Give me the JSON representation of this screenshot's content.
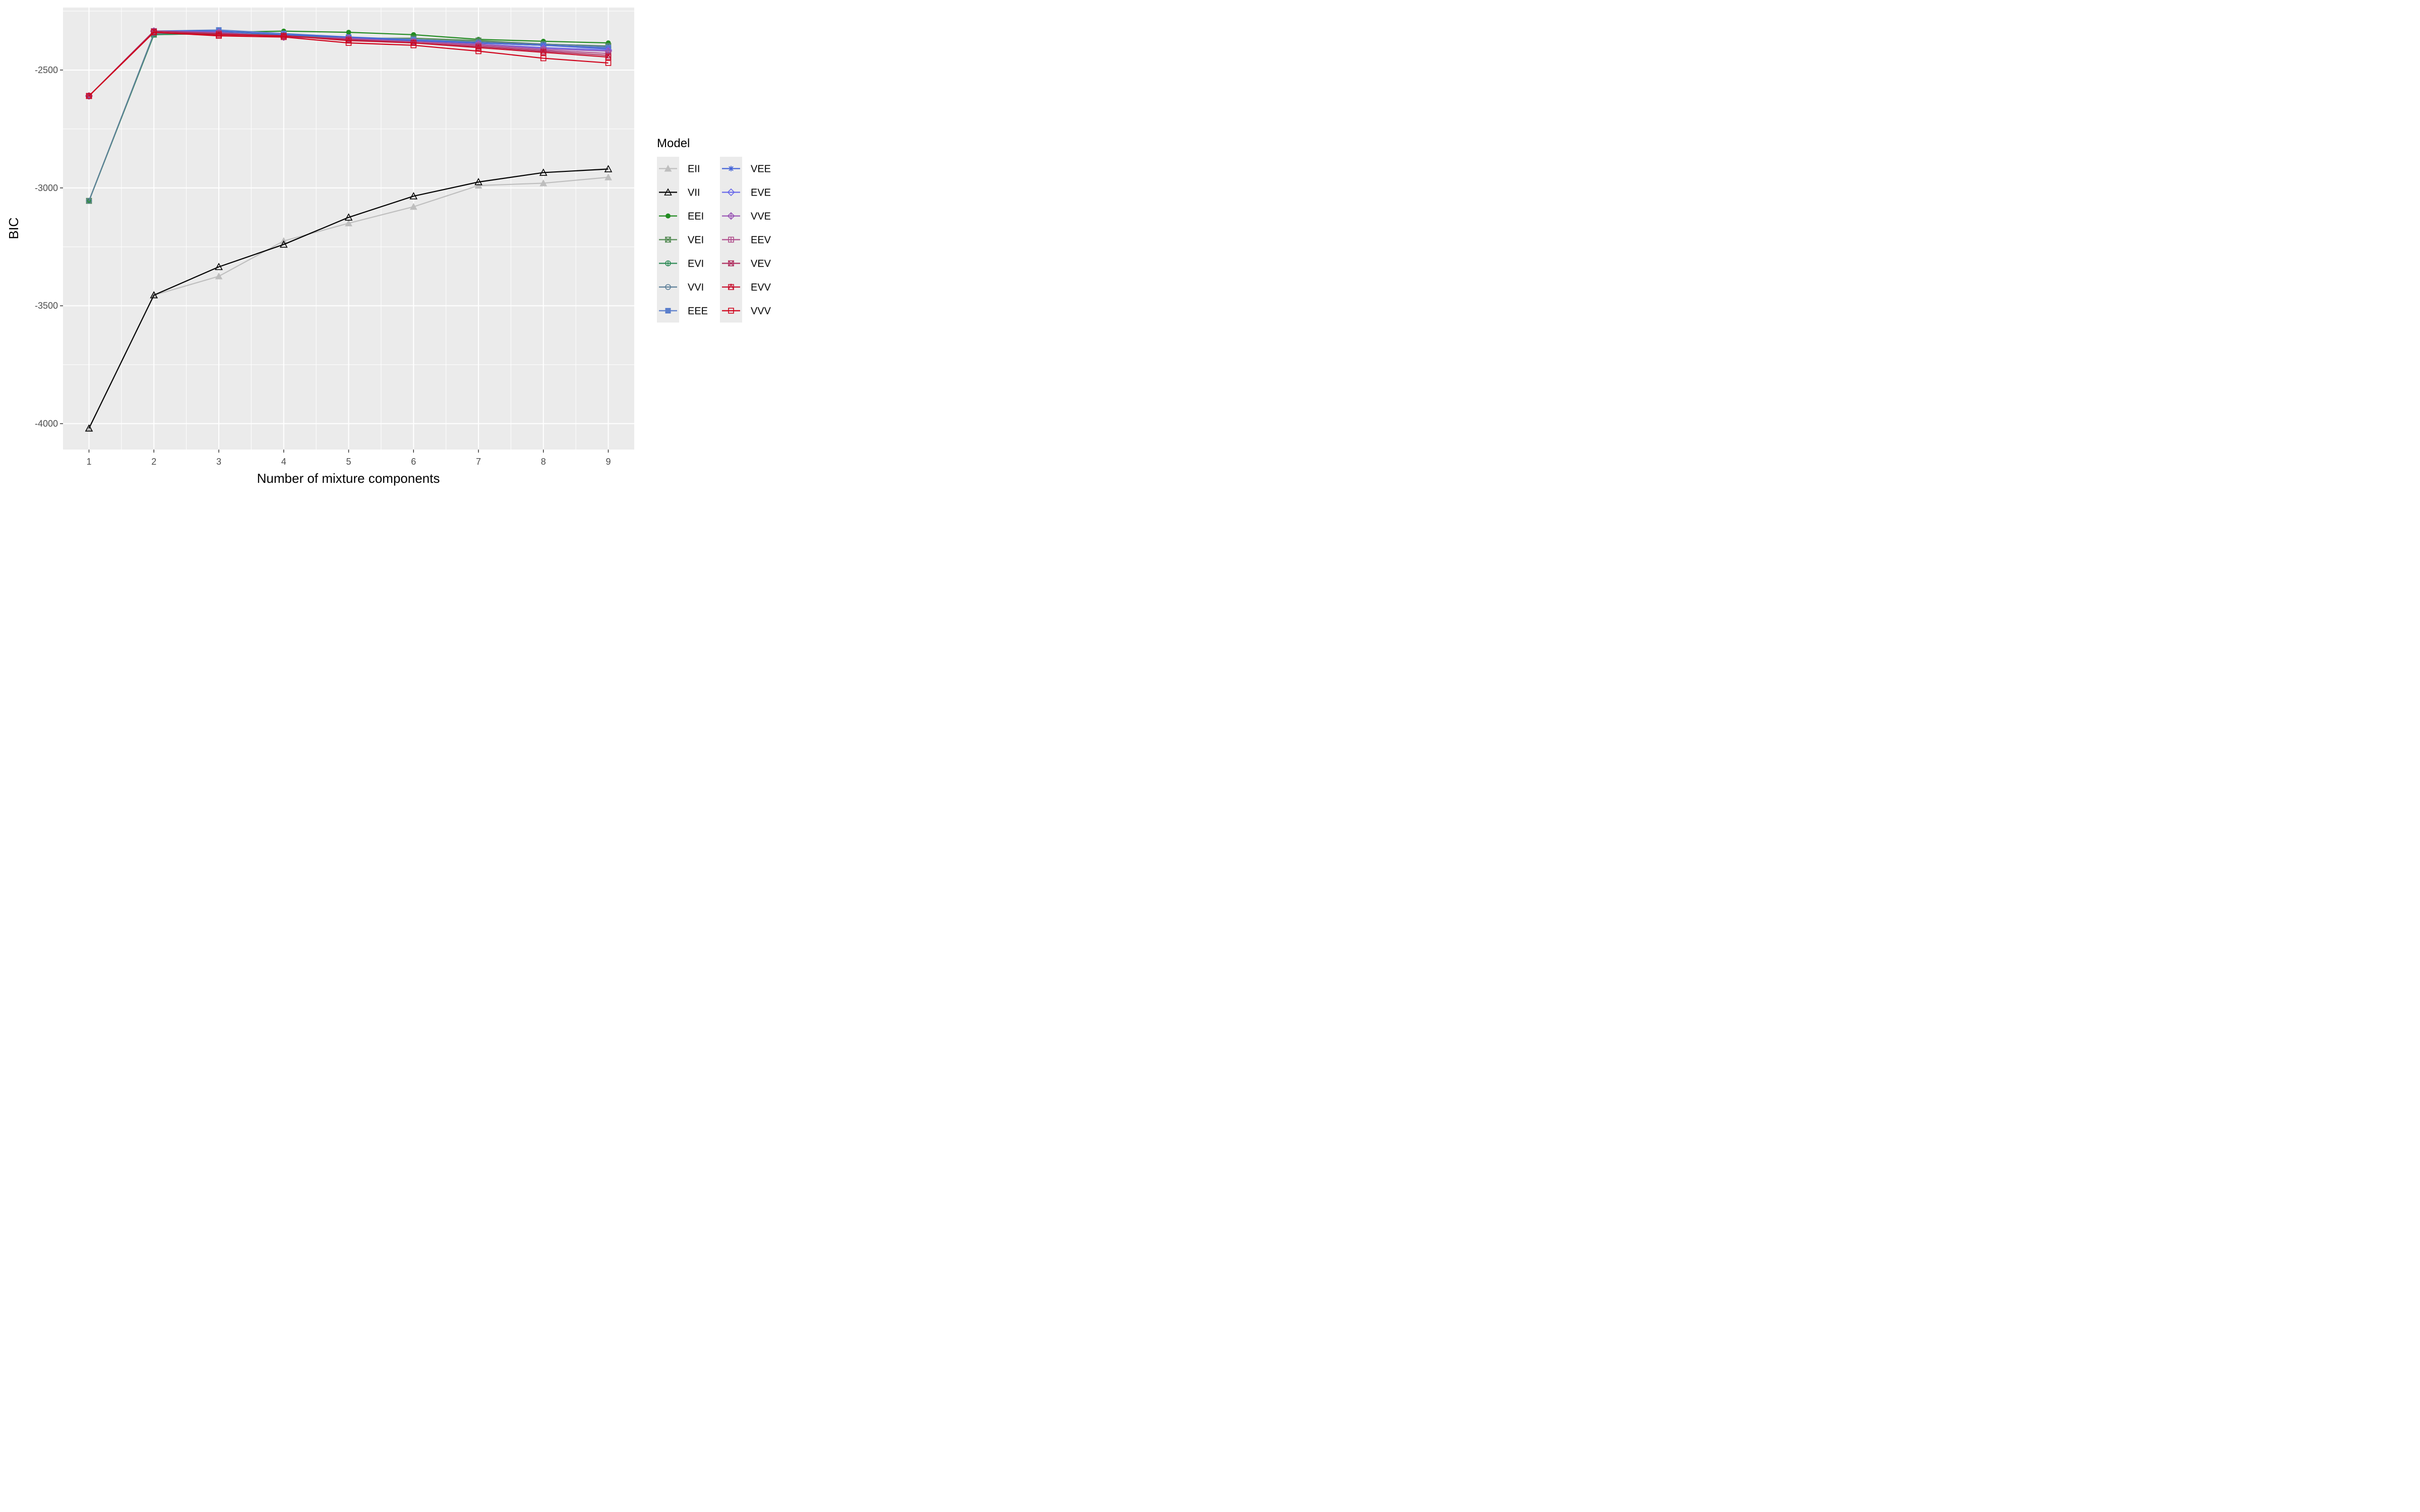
{
  "chart_data": {
    "type": "line",
    "xlabel": "Number of mixture components",
    "ylabel": "BIC",
    "x": [
      1,
      2,
      3,
      4,
      5,
      6,
      7,
      8,
      9
    ],
    "xlim": [
      0.6,
      9.4
    ],
    "ylim": [
      -4110,
      -2235
    ],
    "xticks": [
      "1",
      "2",
      "3",
      "4",
      "5",
      "6",
      "7",
      "8",
      "9"
    ],
    "yticks": [
      -2500,
      -3000,
      -3500,
      -4000
    ],
    "ytick_labels": [
      "-2500",
      "-3000",
      "-3500",
      "-4000"
    ],
    "panel_background": "#ebebeb",
    "grid": true,
    "legend": {
      "title": "Model",
      "position": "right",
      "columns": 2
    },
    "series": [
      {
        "name": "EII",
        "color": "#bebebe",
        "marker": "triangle-filled",
        "values": [
          -4020,
          -3455,
          -3375,
          -3225,
          -3150,
          -3080,
          -2990,
          -2980,
          -2955
        ]
      },
      {
        "name": "VII",
        "color": "#000000",
        "marker": "triangle-open",
        "values": [
          -4020,
          -3455,
          -3335,
          -3240,
          -3125,
          -3035,
          -2975,
          -2935,
          -2920
        ]
      },
      {
        "name": "EEI",
        "color": "#228b22",
        "marker": "circle-filled",
        "values": [
          -3055,
          -2350,
          -2340,
          -2335,
          -2340,
          -2350,
          -2370,
          -2378,
          -2385
        ]
      },
      {
        "name": "VEI",
        "color": "#548b54",
        "marker": "square-cross",
        "values": [
          -3055,
          -2350,
          -2345,
          -2350,
          -2365,
          -2365,
          -2375,
          -2390,
          -2398
        ]
      },
      {
        "name": "EVI",
        "color": "#2e8b57",
        "marker": "circle-plus",
        "values": [
          -3055,
          -2350,
          -2345,
          -2355,
          -2370,
          -2375,
          -2385,
          -2395,
          -2405
        ]
      },
      {
        "name": "VVI",
        "color": "#5c7f99",
        "marker": "circle-open",
        "values": [
          -3055,
          -2345,
          -2340,
          -2355,
          -2365,
          -2370,
          -2380,
          -2390,
          -2400
        ]
      },
      {
        "name": "EEE",
        "color": "#5b7fcc",
        "marker": "square-filled",
        "values": [
          -2610,
          -2335,
          -2330,
          -2345,
          -2360,
          -2370,
          -2385,
          -2395,
          -2405
        ]
      },
      {
        "name": "VEE",
        "color": "#4363d8",
        "marker": "asterisk",
        "values": [
          -2610,
          -2335,
          -2335,
          -2350,
          -2360,
          -2375,
          -2385,
          -2395,
          -2410
        ]
      },
      {
        "name": "EVE",
        "color": "#6a6aea",
        "marker": "diamond-open",
        "values": [
          -2610,
          -2335,
          -2340,
          -2360,
          -2365,
          -2380,
          -2390,
          -2405,
          -2415
        ]
      },
      {
        "name": "VVE",
        "color": "#9b59b6",
        "marker": "diamond-plus",
        "values": [
          -2610,
          -2335,
          -2340,
          -2360,
          -2365,
          -2380,
          -2390,
          -2410,
          -2420
        ]
      },
      {
        "name": "EEV",
        "color": "#b04e8c",
        "marker": "square-plus",
        "values": [
          -2610,
          -2335,
          -2345,
          -2355,
          -2370,
          -2380,
          -2395,
          -2415,
          -2430
        ]
      },
      {
        "name": "VEV",
        "color": "#b03060",
        "marker": "square-cross",
        "values": [
          -2610,
          -2335,
          -2345,
          -2355,
          -2370,
          -2385,
          -2400,
          -2420,
          -2438
        ]
      },
      {
        "name": "EVV",
        "color": "#c8102e",
        "marker": "square-x",
        "values": [
          -2610,
          -2340,
          -2350,
          -2355,
          -2375,
          -2385,
          -2405,
          -2425,
          -2445
        ]
      },
      {
        "name": "VVV",
        "color": "#d0021b",
        "marker": "square-open",
        "values": [
          -2610,
          -2340,
          -2355,
          -2360,
          -2385,
          -2395,
          -2420,
          -2450,
          -2470
        ]
      }
    ]
  }
}
